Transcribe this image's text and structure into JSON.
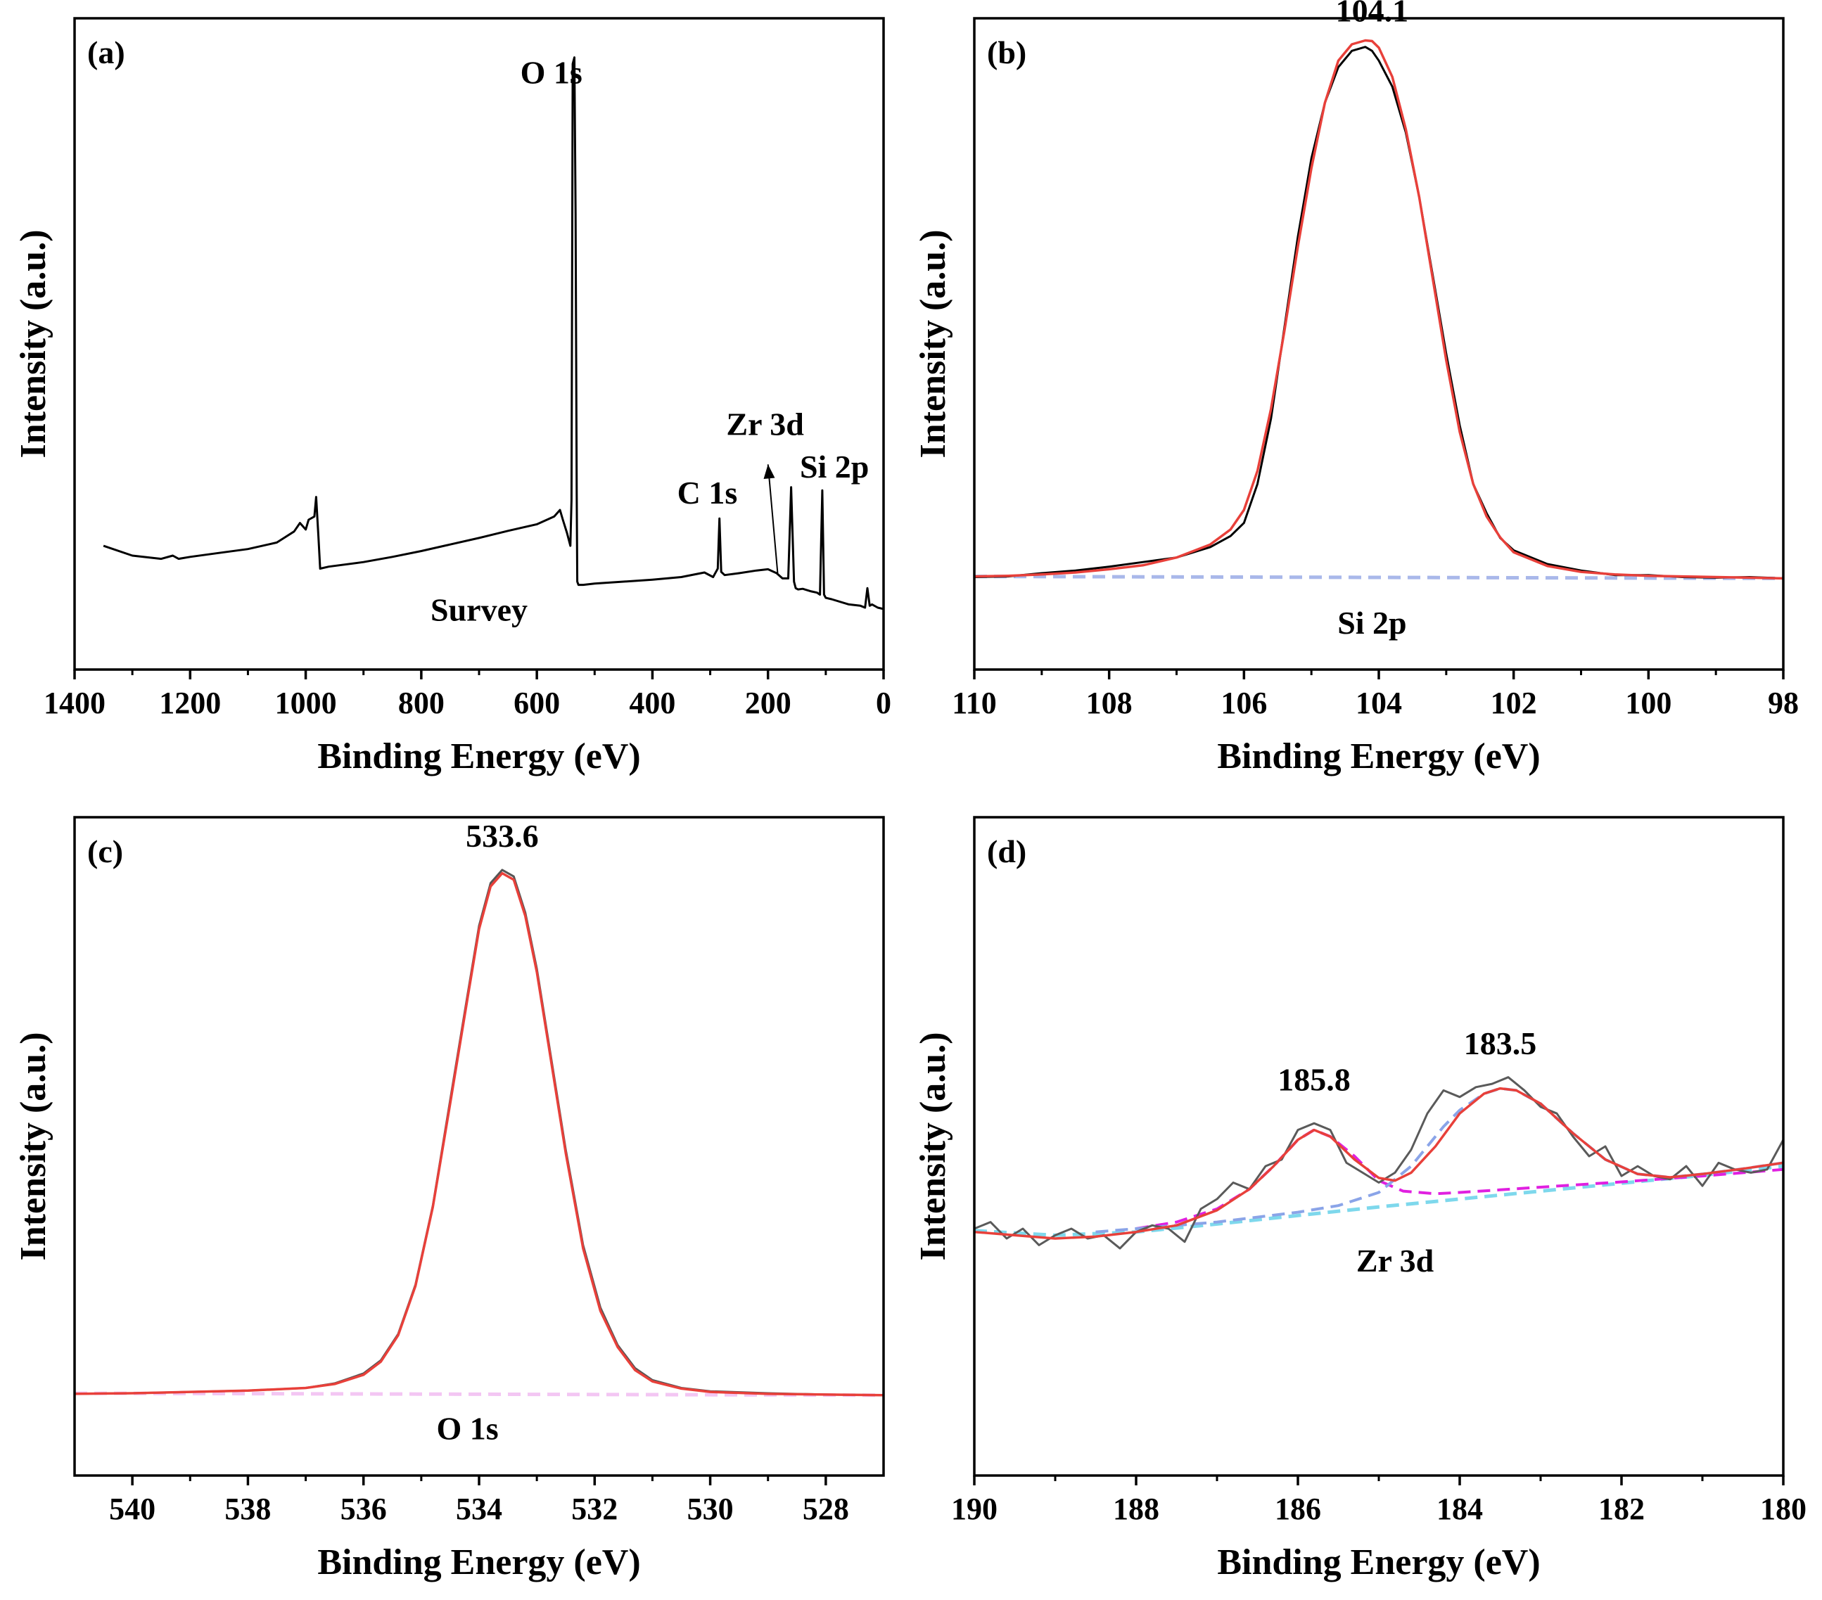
{
  "figure": {
    "description_free": true
  },
  "chart_data": [
    {
      "id": "a",
      "type": "line",
      "panel_label": "(a)",
      "xlabel": "Binding Energy (eV)",
      "ylabel": "Intensity (a.u.)",
      "xlim": [
        1400,
        0
      ],
      "x_ticks": [
        1400,
        1200,
        1000,
        800,
        600,
        400,
        200,
        0
      ],
      "ylim": [
        0,
        100
      ],
      "series": [
        {
          "name": "survey",
          "color": "#000000",
          "x": [
            1350,
            1300,
            1250,
            1230,
            1220,
            1200,
            1150,
            1100,
            1050,
            1020,
            1010,
            1000,
            995,
            985,
            982,
            978,
            975,
            960,
            900,
            850,
            800,
            750,
            700,
            650,
            600,
            570,
            560,
            555,
            548,
            542,
            540,
            538,
            535,
            533,
            531,
            530,
            528,
            520,
            500,
            450,
            400,
            350,
            310,
            295,
            287,
            284,
            281,
            275,
            250,
            220,
            200,
            185,
            175,
            165,
            160,
            155,
            152,
            148,
            140,
            125,
            115,
            110,
            106,
            103,
            100,
            90,
            60,
            40,
            32,
            28,
            24,
            20,
            10,
            0
          ],
          "y": [
            19.0,
            17.5,
            17.0,
            17.5,
            17.0,
            17.3,
            17.9,
            18.5,
            19.5,
            21.2,
            22.5,
            21.5,
            23.0,
            23.5,
            26.5,
            20.5,
            15.5,
            15.8,
            16.5,
            17.3,
            18.2,
            19.2,
            20.2,
            21.3,
            22.3,
            23.5,
            24.5,
            23.0,
            21.0,
            19.0,
            26.0,
            93.0,
            94.0,
            70.0,
            27.0,
            13.5,
            13.0,
            13.0,
            13.2,
            13.5,
            13.8,
            14.2,
            14.9,
            14.2,
            15.5,
            23.2,
            15.0,
            14.5,
            14.8,
            15.2,
            15.4,
            14.8,
            14.0,
            14.0,
            28.0,
            13.5,
            12.5,
            12.3,
            12.4,
            12.0,
            11.8,
            11.5,
            27.5,
            11.5,
            11.0,
            10.8,
            10.0,
            9.8,
            9.5,
            12.5,
            9.8,
            10.0,
            9.5,
            9.3
          ]
        }
      ],
      "annotations": [
        {
          "text": "O 1s",
          "x": 575,
          "y": 90
        },
        {
          "text": "Zr 3d",
          "x": 205,
          "y": 36
        },
        {
          "text": "Si 2p",
          "x": 85,
          "y": 29.5
        },
        {
          "text": "C 1s",
          "x": 305,
          "y": 25.5
        },
        {
          "text": "Survey",
          "x": 700,
          "y": 7.5
        }
      ],
      "arrow": {
        "from_x": 183,
        "from_y": 14.5,
        "to_x": 200,
        "to_y": 31.5
      }
    },
    {
      "id": "b",
      "type": "line",
      "panel_label": "(b)",
      "xlabel": "Binding Energy (eV)",
      "ylabel": "Intensity (a.u.)",
      "xlim": [
        110,
        98
      ],
      "x_ticks": [
        110,
        108,
        106,
        104,
        102,
        100,
        98
      ],
      "ylim": [
        0,
        100
      ],
      "series": [
        {
          "name": "raw",
          "color": "#000000",
          "x": [
            110,
            109.5,
            109,
            108.5,
            108,
            107.5,
            107,
            106.5,
            106.2,
            106,
            105.8,
            105.6,
            105.4,
            105.2,
            105,
            104.8,
            104.6,
            104.4,
            104.2,
            104.1,
            104,
            103.8,
            103.6,
            103.4,
            103.2,
            103,
            102.8,
            102.6,
            102.4,
            102.2,
            102,
            101.5,
            101,
            100.5,
            100,
            99.5,
            99,
            98.5,
            98
          ],
          "y": [
            14.2,
            14.3,
            14.8,
            15.2,
            15.8,
            16.5,
            17.2,
            18.8,
            20.5,
            22.5,
            28.5,
            38.5,
            52.5,
            66.5,
            78.5,
            87.0,
            92.5,
            95.0,
            95.6,
            95.0,
            93.5,
            89.5,
            82.5,
            72.5,
            60.5,
            48.5,
            37.5,
            28.5,
            24.0,
            20.2,
            18.3,
            16.2,
            15.2,
            14.5,
            14.5,
            14.2,
            14.1,
            14.2,
            14.0
          ]
        },
        {
          "name": "fit",
          "color": "#e8403a",
          "x": [
            110,
            109.5,
            109,
            108.5,
            108,
            107.5,
            107,
            106.5,
            106.2,
            106,
            105.8,
            105.6,
            105.4,
            105.2,
            105,
            104.8,
            104.6,
            104.4,
            104.2,
            104.1,
            104,
            103.8,
            103.6,
            103.4,
            103.2,
            103,
            102.8,
            102.6,
            102.4,
            102.2,
            102,
            101.5,
            101,
            100.5,
            100,
            99.5,
            99,
            98.5,
            98
          ],
          "y": [
            14.3,
            14.4,
            14.6,
            14.9,
            15.4,
            16.0,
            17.2,
            19.2,
            21.5,
            24.5,
            30.5,
            40.0,
            52.0,
            65.0,
            77.0,
            87.0,
            93.5,
            96.0,
            96.6,
            96.5,
            95.5,
            91.0,
            83.0,
            72.5,
            60.0,
            47.5,
            36.5,
            28.5,
            23.5,
            20.3,
            18.0,
            15.9,
            15.0,
            14.6,
            14.4,
            14.3,
            14.2,
            14.1,
            14.0
          ]
        },
        {
          "name": "background",
          "color": "#a9b8ea",
          "dashed": true,
          "x": [
            110,
            98
          ],
          "y": [
            14.3,
            14.0
          ]
        }
      ],
      "annotations": [
        {
          "text": "104.1",
          "x": 104.1,
          "y": 99.5
        },
        {
          "text": "Si 2p",
          "x": 104.1,
          "y": 5.5
        }
      ]
    },
    {
      "id": "c",
      "type": "line",
      "panel_label": "(c)",
      "xlabel": "Binding Energy (eV)",
      "ylabel": "Intensity (a.u.)",
      "xlim": [
        541,
        527
      ],
      "x_ticks": [
        540,
        538,
        536,
        534,
        532,
        530,
        528
      ],
      "ylim": [
        0,
        100
      ],
      "series": [
        {
          "name": "raw",
          "color": "#555555",
          "x": [
            541,
            540,
            539,
            538,
            537,
            536.5,
            536,
            535.7,
            535.4,
            535.1,
            534.8,
            534.5,
            534.2,
            534,
            533.8,
            533.6,
            533.4,
            533.2,
            533,
            532.8,
            532.5,
            532.2,
            531.9,
            531.6,
            531.3,
            531,
            530.5,
            530,
            529,
            528,
            527
          ],
          "y": [
            12.4,
            12.5,
            12.7,
            12.9,
            13.3,
            14.0,
            15.5,
            17.5,
            21.5,
            29.0,
            41.0,
            57.0,
            73.0,
            83.5,
            90.0,
            92.0,
            91.0,
            85.5,
            77.0,
            66.0,
            49.5,
            35.0,
            25.5,
            19.8,
            16.3,
            14.5,
            13.3,
            12.8,
            12.5,
            12.3,
            12.2
          ]
        },
        {
          "name": "fit",
          "color": "#e8403a",
          "x": [
            541,
            540,
            539,
            538,
            537,
            536.5,
            536,
            535.7,
            535.4,
            535.1,
            534.8,
            534.5,
            534.2,
            534,
            533.8,
            533.6,
            533.4,
            533.2,
            533,
            532.8,
            532.5,
            532.2,
            531.9,
            531.6,
            531.3,
            531,
            530.5,
            530,
            529,
            528,
            527
          ],
          "y": [
            12.4,
            12.5,
            12.7,
            12.9,
            13.3,
            13.9,
            15.3,
            17.3,
            21.3,
            28.8,
            40.8,
            56.5,
            72.5,
            83.0,
            89.5,
            91.5,
            90.5,
            85.0,
            76.5,
            65.5,
            49.0,
            34.5,
            25.0,
            19.5,
            16.0,
            14.3,
            13.2,
            12.7,
            12.4,
            12.3,
            12.2
          ]
        },
        {
          "name": "background",
          "color": "#f3c6f3",
          "dashed": true,
          "x": [
            541,
            527
          ],
          "y": [
            12.5,
            12.2
          ]
        }
      ],
      "annotations": [
        {
          "text": "533.6",
          "x": 533.6,
          "y": 95.5
        },
        {
          "text": "O 1s",
          "x": 534.2,
          "y": 5.5
        }
      ]
    },
    {
      "id": "d",
      "type": "line",
      "panel_label": "(d)",
      "xlabel": "Binding Energy (eV)",
      "ylabel": "Intensity (a.u.)",
      "xlim": [
        190,
        180
      ],
      "x_ticks": [
        190,
        188,
        186,
        184,
        182,
        180
      ],
      "ylim": [
        0,
        100
      ],
      "series": [
        {
          "name": "raw",
          "color": "#5a5a5a",
          "x": [
            190,
            189.8,
            189.6,
            189.4,
            189.2,
            189,
            188.8,
            188.6,
            188.4,
            188.2,
            188,
            187.8,
            187.6,
            187.4,
            187.2,
            187,
            186.8,
            186.6,
            186.4,
            186.2,
            186,
            185.8,
            185.6,
            185.4,
            185.2,
            185,
            184.8,
            184.6,
            184.4,
            184.2,
            184,
            183.8,
            183.6,
            183.4,
            183.2,
            183,
            182.8,
            182.6,
            182.4,
            182.2,
            182,
            181.8,
            181.6,
            181.4,
            181.2,
            181,
            180.8,
            180.6,
            180.4,
            180.2,
            180
          ],
          "y": [
            37.5,
            38.5,
            36.0,
            37.5,
            35.0,
            36.5,
            37.5,
            36.0,
            36.5,
            34.5,
            37.0,
            38.0,
            37.5,
            35.5,
            40.5,
            42.0,
            44.5,
            43.5,
            47.0,
            48.0,
            52.5,
            53.5,
            52.5,
            47.5,
            46.0,
            44.5,
            46.0,
            49.5,
            55.0,
            58.5,
            57.5,
            59.0,
            59.5,
            60.5,
            58.5,
            56.0,
            55.0,
            51.5,
            48.5,
            50.0,
            45.5,
            47.0,
            45.5,
            45.0,
            47.0,
            44.0,
            47.5,
            46.5,
            46.0,
            46.5,
            51.0
          ]
        },
        {
          "name": "fit",
          "color": "#e8403a",
          "x": [
            190,
            189.5,
            189,
            188.5,
            188,
            187.5,
            187,
            186.6,
            186.3,
            186,
            185.8,
            185.6,
            185.3,
            185,
            184.8,
            184.6,
            184.3,
            184,
            183.7,
            183.5,
            183.3,
            183,
            182.6,
            182.2,
            181.8,
            181.4,
            181,
            180.5,
            180
          ],
          "y": [
            37.0,
            36.5,
            36.0,
            36.3,
            37.0,
            38.0,
            40.3,
            43.5,
            47.0,
            51.0,
            52.5,
            51.5,
            48.0,
            45.2,
            44.8,
            46.0,
            50.0,
            55.0,
            58.0,
            58.8,
            58.5,
            56.5,
            52.0,
            48.0,
            45.8,
            45.3,
            45.8,
            46.6,
            47.5
          ]
        },
        {
          "name": "component-185.8",
          "color": "#e020e0",
          "dashed": true,
          "x": [
            188,
            187.5,
            187,
            186.6,
            186.3,
            186,
            185.8,
            185.6,
            185.3,
            185,
            184.7,
            184.3,
            184,
            183.5,
            183,
            182,
            181,
            180
          ],
          "y": [
            37.5,
            38.5,
            40.5,
            43.5,
            47.0,
            51.0,
            52.5,
            51.5,
            48.5,
            44.8,
            43.2,
            42.8,
            43.0,
            43.4,
            43.8,
            44.6,
            45.5,
            46.5
          ]
        },
        {
          "name": "component-183.5",
          "color": "#8aa4e8",
          "dashed": true,
          "x": [
            188.5,
            188,
            187,
            186,
            185.5,
            185,
            184.6,
            184.2,
            184,
            183.7,
            183.5,
            183.3,
            183,
            182.6,
            182.2,
            181.8,
            181.4,
            181,
            180.5,
            180
          ],
          "y": [
            37.0,
            37.5,
            38.5,
            40.0,
            41.0,
            43.0,
            47.0,
            53.0,
            55.5,
            58.0,
            58.8,
            58.5,
            56.5,
            52.0,
            48.0,
            45.8,
            45.3,
            45.8,
            46.6,
            47.5
          ]
        },
        {
          "name": "background",
          "color": "#7ed8ec",
          "dashed": true,
          "x": [
            190,
            189,
            188,
            187,
            186,
            185,
            184,
            183,
            182,
            181,
            180
          ],
          "y": [
            37.2,
            36.5,
            37.0,
            38.2,
            39.5,
            40.8,
            42.0,
            43.2,
            44.4,
            45.6,
            47.0
          ]
        }
      ],
      "annotations": [
        {
          "text": "185.8",
          "x": 185.8,
          "y": 58.5
        },
        {
          "text": "183.5",
          "x": 183.5,
          "y": 64.0
        },
        {
          "text": "Zr 3d",
          "x": 184.8,
          "y": 31.0
        }
      ]
    }
  ]
}
